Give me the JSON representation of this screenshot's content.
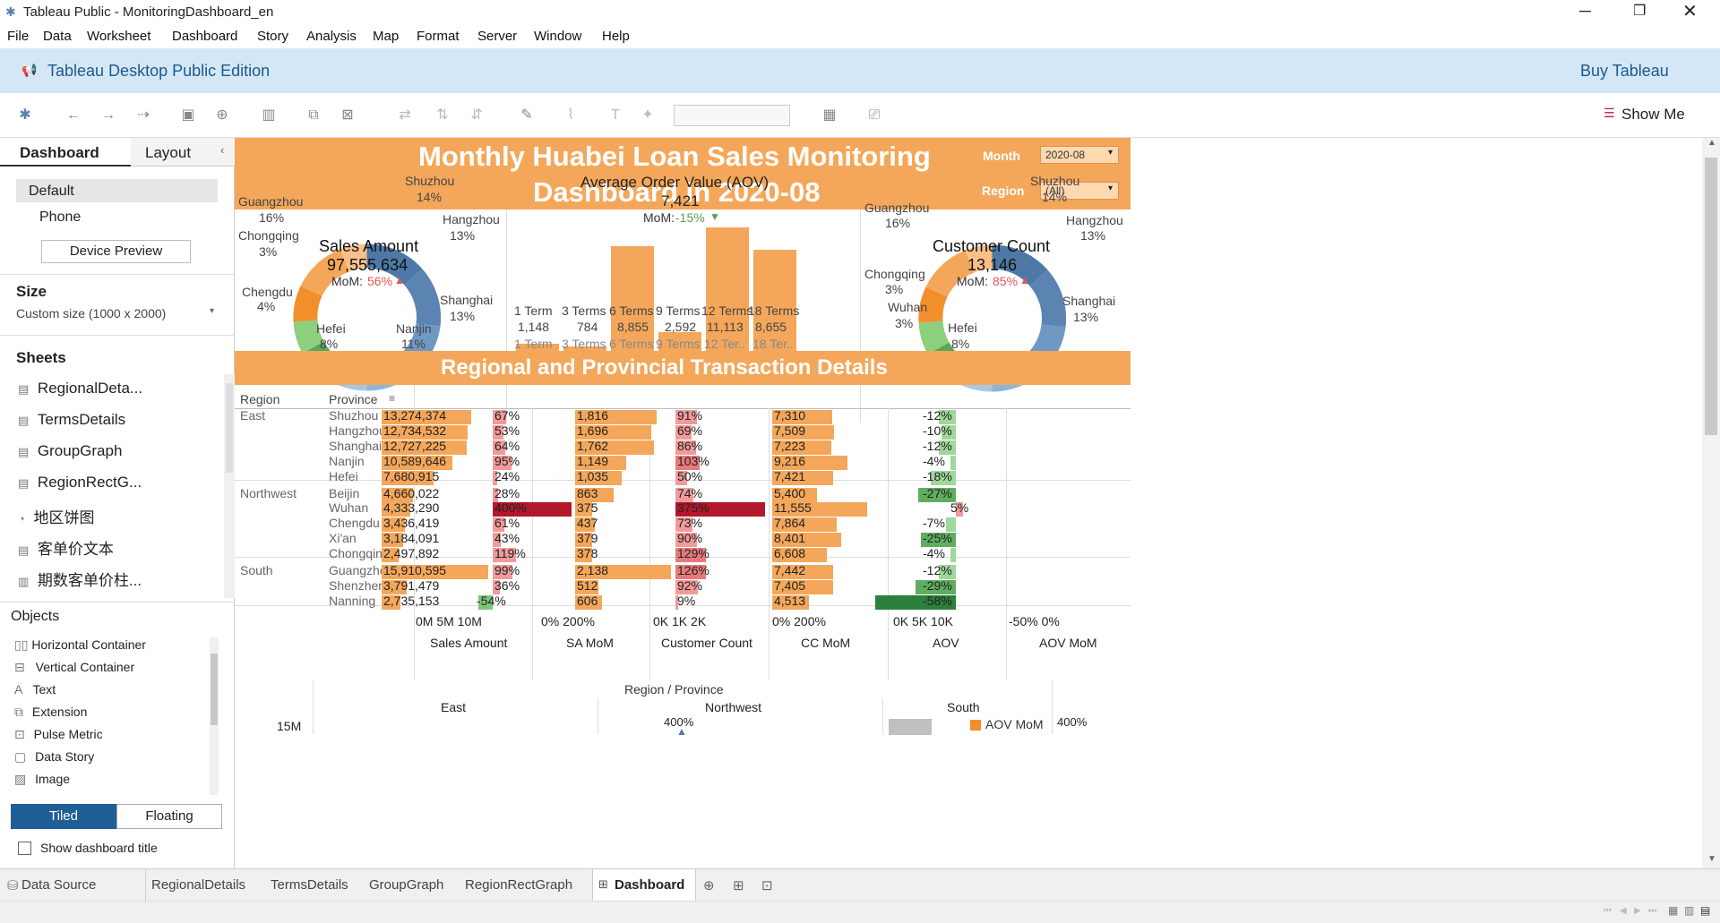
{
  "app": {
    "title": "Tableau Public - MonitoringDashboard_en",
    "menu": [
      "File",
      "Data",
      "Worksheet",
      "Dashboard",
      "Story",
      "Analysis",
      "Map",
      "Format",
      "Server",
      "Window",
      "Help"
    ],
    "banner_text": "Tableau Desktop Public Edition",
    "buy_label": "Buy Tableau",
    "show_me": "Show Me"
  },
  "side": {
    "tab_dashboard": "Dashboard",
    "tab_layout": "Layout",
    "default": "Default",
    "phone": "Phone",
    "device_preview": "Device Preview",
    "size_title": "Size",
    "size_value": "Custom size (1000 x 2000)",
    "sheets_title": "Sheets",
    "sheets": [
      "RegionalDeta...",
      "TermsDetails",
      "GroupGraph",
      "RegionRectG...",
      "地区饼图",
      "客单价文本",
      "期数客单价柱..."
    ],
    "objects_title": "Objects",
    "objects": [
      "Horizontal Container",
      "Vertical Container",
      "Text",
      "Extension",
      "Pulse Metric",
      "Data Story",
      "Image"
    ],
    "tiled": "Tiled",
    "floating": "Floating",
    "show_title": "Show dashboard title"
  },
  "dash": {
    "title_line1": "Monthly Huabei Loan Sales Monitoring",
    "title_line2": "Dashboard in 2020-08",
    "month_label": "Month",
    "month_value": "2020-08",
    "region_label": "Region",
    "region_value": "(All)",
    "section2": "Regional and Provincial Transaction Details",
    "sales": {
      "title": "Sales Amount",
      "value": "97,555,634",
      "mom_label": "MoM:",
      "mom": "56%"
    },
    "aov": {
      "title": "Average Order Value (AOV)",
      "value": "7,421",
      "mom_label": "MoM:",
      "mom": "-15%"
    },
    "cust": {
      "title": "Customer Count",
      "value": "13,146",
      "mom_label": "MoM:",
      "mom": "85%"
    },
    "pie_labels_left": {
      "shuzhou": "Shuzhou",
      "shuzhou_p": "14%",
      "hangzhou": "Hangzhou",
      "hangzhou_p": "13%",
      "guangzhou": "Guangzhou",
      "guangzhou_p": "16%",
      "chongqing": "Chongqing",
      "chongqing_p": "3%",
      "chengdu": "Chengdu",
      "chengdu_p": "4%",
      "shanghai": "Shanghai",
      "shanghai_p": "13%",
      "hefei": "Hefei",
      "hefei_p": "8%",
      "nanjin": "Nanjin",
      "nanjin_p": "11%"
    },
    "pie_labels_right": {
      "shuzhou": "Shuzhou",
      "shuzhou_p": "14%",
      "hangzhou": "Hangzhou",
      "hangzhou_p": "13%",
      "guangzhou": "Guangzhou",
      "guangzhou_p": "16%",
      "chongqing": "Chongqing",
      "chongqing_p": "3%",
      "wuhan": "Wuhan",
      "wuhan_p": "3%",
      "shanghai": "Shanghai",
      "shanghai_p": "13%",
      "hefei": "Hefei",
      "hefei_p": "8%"
    },
    "terms": [
      {
        "term": "1 Term",
        "value": "1,148",
        "axis": "1 Term"
      },
      {
        "term": "3 Terms",
        "value": "784",
        "axis": "3 Terms"
      },
      {
        "term": "6 Terms",
        "value": "8,855",
        "axis": "6 Terms"
      },
      {
        "term": "9 Terms",
        "value": "2,592",
        "axis": "9 Terms"
      },
      {
        "term": "12 Terms",
        "value": "11,113",
        "axis": "12 Ter.."
      },
      {
        "term": "18 Terms",
        "value": "8,655",
        "axis": "18 Ter.."
      }
    ],
    "table": {
      "h_region": "Region",
      "h_province": "Province",
      "rows": [
        {
          "region": "East",
          "province": "Shuzhou",
          "sales": "13,274,374",
          "sa": "67%",
          "cc": "1,816",
          "ccm": "91%",
          "aov": "7,310",
          "aovm": "-12%"
        },
        {
          "region": "",
          "province": "Hangzhou",
          "sales": "12,734,532",
          "sa": "53%",
          "cc": "1,696",
          "ccm": "69%",
          "aov": "7,509",
          "aovm": "-10%"
        },
        {
          "region": "",
          "province": "Shanghai",
          "sales": "12,727,225",
          "sa": "64%",
          "cc": "1,762",
          "ccm": "86%",
          "aov": "7,223",
          "aovm": "-12%"
        },
        {
          "region": "",
          "province": "Nanjin",
          "sales": "10,589,646",
          "sa": "95%",
          "cc": "1,149",
          "ccm": "103%",
          "aov": "9,216",
          "aovm": "-4%"
        },
        {
          "region": "",
          "province": "Hefei",
          "sales": "7,680,915",
          "sa": "24%",
          "cc": "1,035",
          "ccm": "50%",
          "aov": "7,421",
          "aovm": "-18%"
        },
        {
          "region": "Northwest",
          "province": "Beijin",
          "sales": "4,660,022",
          "sa": "28%",
          "cc": "863",
          "ccm": "74%",
          "aov": "5,400",
          "aovm": "-27%"
        },
        {
          "region": "",
          "province": "Wuhan",
          "sales": "4,333,290",
          "sa": "400%",
          "cc": "375",
          "ccm": "375%",
          "aov": "11,555",
          "aovm": "5%"
        },
        {
          "region": "",
          "province": "Chengdu",
          "sales": "3,436,419",
          "sa": "61%",
          "cc": "437",
          "ccm": "73%",
          "aov": "7,864",
          "aovm": "-7%"
        },
        {
          "region": "",
          "province": "Xi'an",
          "sales": "3,184,091",
          "sa": "43%",
          "cc": "379",
          "ccm": "90%",
          "aov": "8,401",
          "aovm": "-25%"
        },
        {
          "region": "",
          "province": "Chongqing",
          "sales": "2,497,892",
          "sa": "119%",
          "cc": "378",
          "ccm": "129%",
          "aov": "6,608",
          "aovm": "-4%"
        },
        {
          "region": "South",
          "province": "Guangzhou",
          "sales": "15,910,595",
          "sa": "99%",
          "cc": "2,138",
          "ccm": "126%",
          "aov": "7,442",
          "aovm": "-12%"
        },
        {
          "region": "",
          "province": "Shenzhen",
          "sales": "3,791,479",
          "sa": "36%",
          "cc": "512",
          "ccm": "92%",
          "aov": "7,405",
          "aovm": "-29%"
        },
        {
          "region": "",
          "province": "Nanning",
          "sales": "2,735,153",
          "sa": "-54%",
          "cc": "606",
          "ccm": "9%",
          "aov": "4,513",
          "aovm": "-58%"
        }
      ],
      "axes": {
        "sales_ticks": "0M 5M  10M",
        "sa_ticks": "0%     200%",
        "cc_ticks": "0K     1K      2K",
        "ccm_ticks": "0%     200%",
        "aov_ticks": "0K     5K     10K",
        "aovm_ticks": "-50%              0%"
      },
      "col_titles": [
        "Sales Amount",
        "SA MoM",
        "Customer Count",
        "CC MoM",
        "AOV",
        "AOV MoM"
      ]
    },
    "bottom": {
      "title": "Region / Province",
      "regions": [
        "East",
        "Northwest",
        "South"
      ],
      "tick": "15M",
      "label_400": "400%",
      "legend": "AOV MoM",
      "legend_val": "400%"
    }
  },
  "tabs": [
    "Data Source",
    "RegionalDetails",
    "TermsDetails",
    "GroupGraph",
    "RegionRectGraph",
    "Dashboard"
  ]
}
